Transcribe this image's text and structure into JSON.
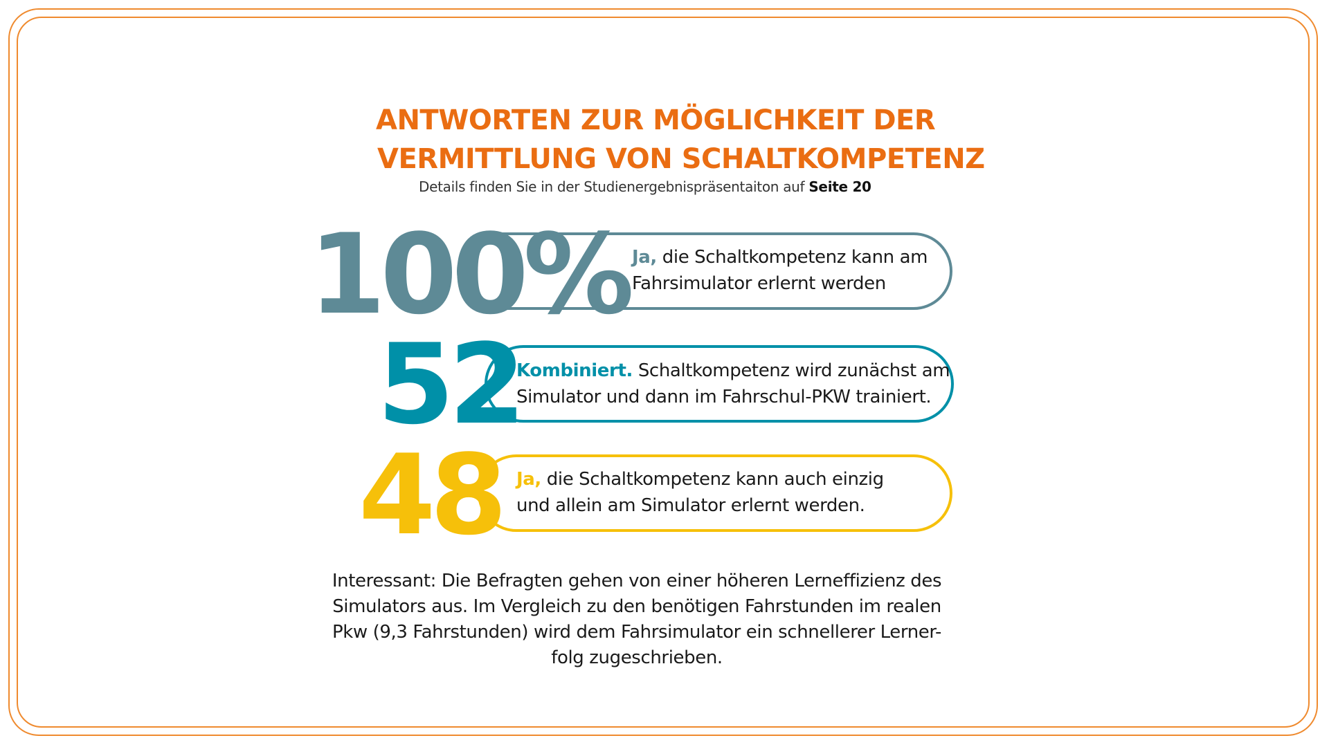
{
  "title": {
    "line1": "ANTWORTEN ZUR MÖGLICHKEIT DER",
    "line2": "VERMITTLUNG VON SCHALTKOMPETENZ"
  },
  "subtitle": {
    "text": "Details finden Sie in der Studienergebnispräsentaiton auf ",
    "page_ref": "Seite 20"
  },
  "stats": [
    {
      "value": "100%",
      "lead": "Ja,",
      "line1": " die Schaltkompetenz kann am",
      "line2": "Fahrsimulator erlernt werden",
      "color": "#5e8a96"
    },
    {
      "value": "52",
      "lead": "Kombiniert.",
      "line1": " Schaltkompetenz wird zunächst am",
      "line2": "Simulator und dann im Fahrschul-PKW trainiert.",
      "color": "#0090a8"
    },
    {
      "value": "48",
      "lead": "Ja,",
      "line1": " die Schaltkompetenz kann auch einzig",
      "line2": "und allein am Simulator erlernt werden.",
      "color": "#f6c00a"
    }
  ],
  "note": {
    "line1": "Interessant: Die Befragten gehen von einer höheren Lerneffizienz des",
    "line2": "Simulators aus. Im Vergleich zu den  benötigen Fahrstunden im realen",
    "line3": "Pkw (9,3 Fahrstunden) wird dem Fahrsimulator ein schnellerer Lerner-",
    "line4": "folg zugeschrieben."
  },
  "colors": {
    "frame": "#ef8a2e",
    "title": "#ea6d12"
  }
}
